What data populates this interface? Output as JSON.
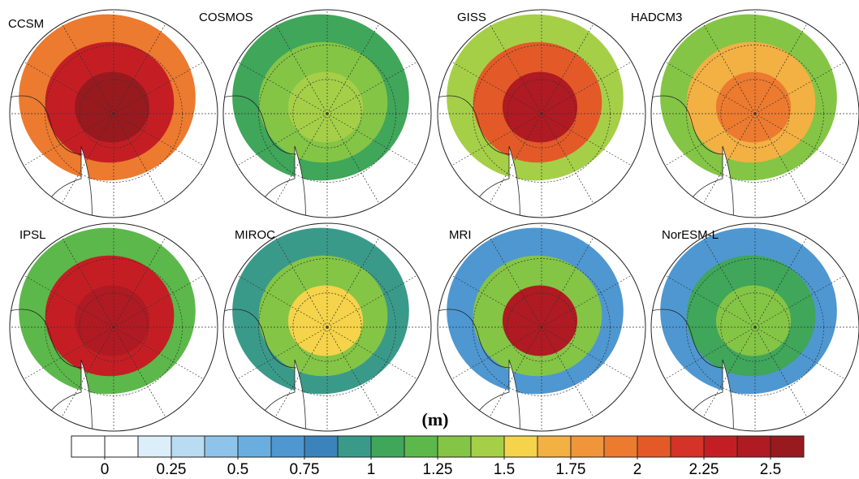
{
  "figure": {
    "panels": [
      {
        "label": "CCSM"
      },
      {
        "label": "COSMOS"
      },
      {
        "label": "GISS"
      },
      {
        "label": "HADCM3"
      },
      {
        "label": "IPSL"
      },
      {
        "label": "MIROC"
      },
      {
        "label": "MRI"
      },
      {
        "label": "NorESM-L"
      }
    ],
    "colorbar": {
      "unit": "(m)",
      "bounds": [
        -0.125,
        0,
        0.125,
        0.25,
        0.375,
        0.5,
        0.625,
        0.75,
        0.875,
        1,
        1.125,
        1.25,
        1.375,
        1.5,
        1.625,
        1.75,
        1.875,
        2,
        2.125,
        2.25,
        2.375,
        2.5,
        2.625
      ],
      "colors": [
        "#ffffff",
        "#ffffff",
        "#dceefa",
        "#b9dcf2",
        "#8fc4ea",
        "#6aaee0",
        "#4e97d1",
        "#3b84bb",
        "#3a9a8a",
        "#3fa65a",
        "#5cb84a",
        "#84c545",
        "#a6cf48",
        "#f5d34a",
        "#f3b043",
        "#ef963a",
        "#ec7a2f",
        "#e35a28",
        "#d53228",
        "#c41e24",
        "#b01a22",
        "#981a1e"
      ],
      "ticks": [
        0,
        0.25,
        0.5,
        0.75,
        1,
        1.25,
        1.5,
        1.75,
        2,
        2.25,
        2.5
      ]
    }
  }
}
